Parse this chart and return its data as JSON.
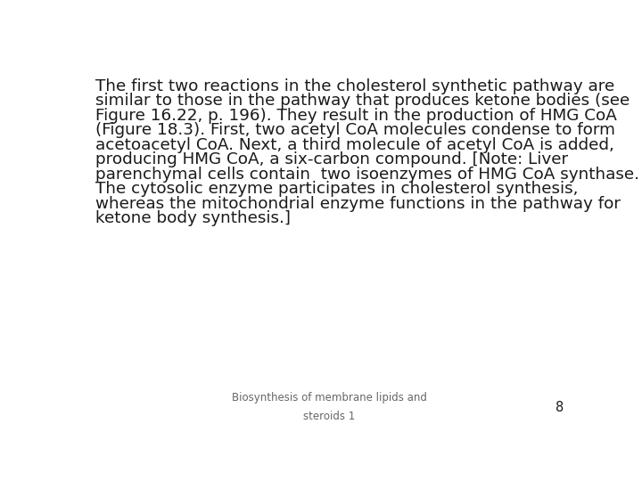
{
  "background_color": "#ffffff",
  "main_lines": [
    "The first two reactions in the cholesterol synthetic pathway are",
    "similar to those in the pathway that produces ketone bodies (see",
    "Figure 16.22, p. 196). They result in the production of HMG CoA",
    "(Figure 18.3). First, two acetyl CoA molecules condense to form",
    "acetoacetyl CoA. Next, a third molecule of acetyl CoA is added,",
    "producing HMG CoA, a six-carbon compound. [Note: Liver",
    "parenchymal cells contain  two isoenzymes of HMG CoA synthase.",
    "The cytosolic enzyme participates in cholesterol synthesis,",
    "whereas the mitochondrial enzyme functions in the pathway for",
    "ketone body synthesis.]"
  ],
  "footer_line1": "Biosynthesis of membrane lipids and",
  "footer_line2": "steroids 1",
  "page_number": "8",
  "text_color": "#1a1a1a",
  "footer_color": "#666666",
  "main_fontsize": 13.2,
  "footer_fontsize": 8.5,
  "page_num_fontsize": 10.5
}
